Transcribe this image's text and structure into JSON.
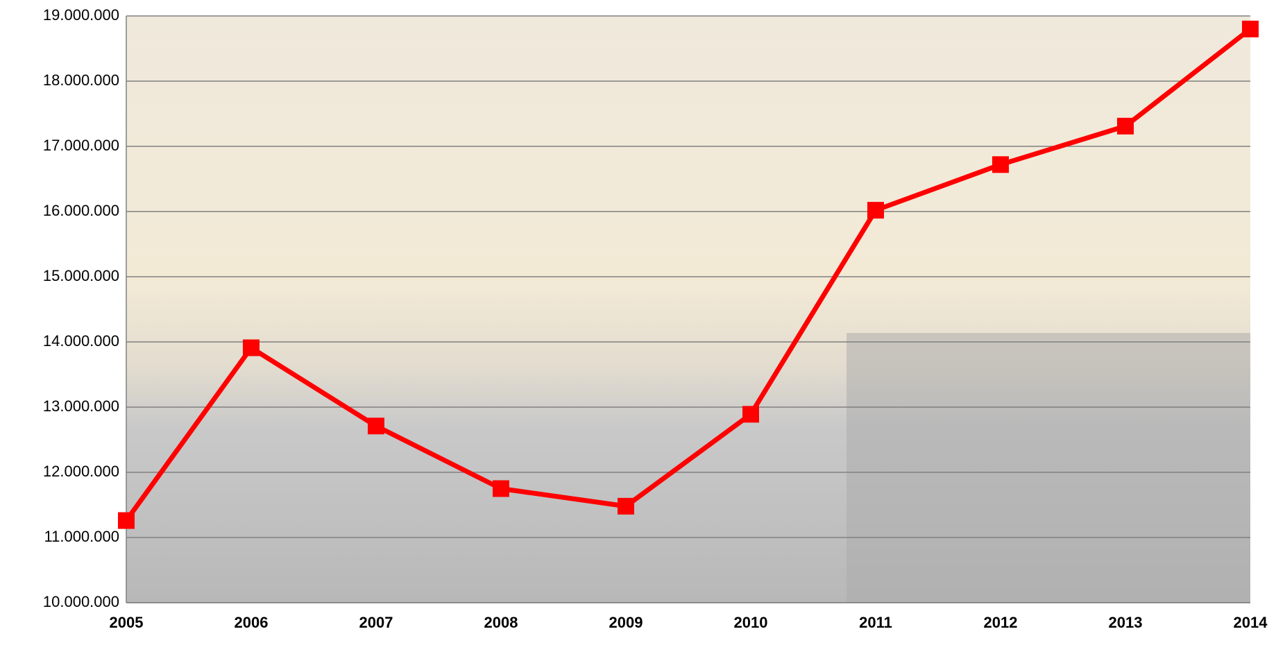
{
  "chart_data": {
    "type": "line",
    "categories": [
      "2005",
      "2006",
      "2007",
      "2008",
      "2009",
      "2010",
      "2011",
      "2012",
      "2013",
      "2014"
    ],
    "series": [
      {
        "color": "#ff0000",
        "values": [
          11260000,
          13910000,
          12710000,
          11750000,
          11480000,
          12890000,
          16020000,
          16720000,
          17310000,
          18800000
        ]
      }
    ],
    "ylim": [
      10000000,
      19000000
    ],
    "yticks": [
      {
        "value": 10000000,
        "label": "10.000.000"
      },
      {
        "value": 11000000,
        "label": "11.000.000"
      },
      {
        "value": 12000000,
        "label": "12.000.000"
      },
      {
        "value": 13000000,
        "label": "13.000.000"
      },
      {
        "value": 14000000,
        "label": "14.000.000"
      },
      {
        "value": 15000000,
        "label": "15.000.000"
      },
      {
        "value": 16000000,
        "label": "16.000.000"
      },
      {
        "value": 17000000,
        "label": "17.000.000"
      },
      {
        "value": 18000000,
        "label": "18.000.000"
      },
      {
        "value": 19000000,
        "label": "19.000.000"
      }
    ],
    "grid": true
  }
}
